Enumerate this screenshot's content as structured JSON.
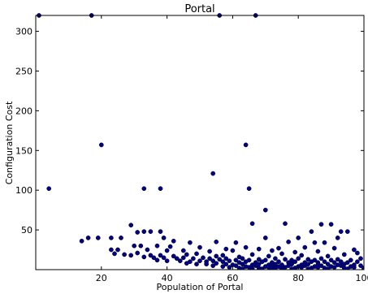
{
  "chart_data": {
    "type": "scatter",
    "title": "Portal",
    "xlabel": "Population of Portal",
    "ylabel": "Configuration Cost",
    "xlim": [
      0,
      100
    ],
    "ylim": [
      0,
      320
    ],
    "xticks": [
      20,
      40,
      60,
      80,
      100
    ],
    "yticks": [
      50,
      100,
      150,
      200,
      250,
      300
    ],
    "grid": false,
    "legend": "none",
    "marker_color": "#00008b",
    "series": [
      {
        "values": [
          [
            1,
            320
          ],
          [
            17,
            320
          ],
          [
            56,
            320
          ],
          [
            67,
            320
          ],
          [
            20,
            157
          ],
          [
            64,
            157
          ],
          [
            54,
            121
          ],
          [
            4,
            102
          ],
          [
            33,
            102
          ],
          [
            38,
            102
          ],
          [
            65,
            102
          ],
          [
            70,
            75
          ],
          [
            66,
            58
          ],
          [
            76,
            58
          ],
          [
            87,
            57
          ],
          [
            90,
            57
          ],
          [
            29,
            56
          ],
          [
            38,
            48
          ],
          [
            31,
            47
          ],
          [
            33,
            48
          ],
          [
            35,
            48
          ],
          [
            84,
            48
          ],
          [
            93,
            48
          ],
          [
            95,
            48
          ],
          [
            70,
            40
          ],
          [
            80,
            40
          ],
          [
            92,
            40
          ],
          [
            16,
            40
          ],
          [
            19,
            40
          ],
          [
            23,
            40
          ],
          [
            26,
            40
          ],
          [
            39,
            40
          ],
          [
            14,
            36
          ],
          [
            42,
            36
          ],
          [
            47,
            34
          ],
          [
            55,
            35
          ],
          [
            61,
            34
          ],
          [
            77,
            35
          ],
          [
            85,
            34
          ],
          [
            88,
            34
          ],
          [
            30,
            30
          ],
          [
            32,
            30
          ],
          [
            37,
            30
          ],
          [
            41,
            29
          ],
          [
            50,
            28
          ],
          [
            58,
            26
          ],
          [
            64,
            28
          ],
          [
            68,
            26
          ],
          [
            74,
            27
          ],
          [
            82,
            28
          ],
          [
            91,
            27
          ],
          [
            23,
            25
          ],
          [
            25,
            25
          ],
          [
            34,
            25
          ],
          [
            40,
            24
          ],
          [
            45,
            24
          ],
          [
            53,
            23
          ],
          [
            60,
            24
          ],
          [
            72,
            24
          ],
          [
            79,
            22
          ],
          [
            86,
            23
          ],
          [
            97,
            25
          ],
          [
            24,
            20
          ],
          [
            27,
            19
          ],
          [
            31,
            21
          ],
          [
            35,
            18
          ],
          [
            38,
            18
          ],
          [
            42,
            17
          ],
          [
            46,
            19
          ],
          [
            49,
            20
          ],
          [
            55,
            17
          ],
          [
            57,
            18
          ],
          [
            62,
            16
          ],
          [
            66,
            19
          ],
          [
            71,
            17
          ],
          [
            75,
            20
          ],
          [
            81,
            18
          ],
          [
            89,
            17
          ],
          [
            94,
            19
          ],
          [
            98,
            21
          ],
          [
            29,
            18
          ],
          [
            33,
            16
          ],
          [
            36,
            15
          ],
          [
            39,
            15
          ],
          [
            43,
            14
          ],
          [
            45,
            15
          ],
          [
            48,
            14
          ],
          [
            51,
            15
          ],
          [
            53,
            14
          ],
          [
            56,
            13
          ],
          [
            58,
            14
          ],
          [
            61,
            12
          ],
          [
            63,
            14
          ],
          [
            65,
            12
          ],
          [
            68,
            13
          ],
          [
            70,
            12
          ],
          [
            73,
            14
          ],
          [
            76,
            13
          ],
          [
            78,
            12
          ],
          [
            80,
            14
          ],
          [
            83,
            13
          ],
          [
            85,
            12
          ],
          [
            87,
            14
          ],
          [
            90,
            12
          ],
          [
            92,
            13
          ],
          [
            96,
            12
          ],
          [
            99,
            14
          ],
          [
            37,
            12
          ],
          [
            40,
            11
          ],
          [
            44,
            11
          ],
          [
            47,
            10
          ],
          [
            50,
            11
          ],
          [
            52,
            10
          ],
          [
            54,
            11
          ],
          [
            57,
            10
          ],
          [
            59,
            11
          ],
          [
            62,
            9
          ],
          [
            64,
            10
          ],
          [
            67,
            9
          ],
          [
            69,
            10
          ],
          [
            72,
            9
          ],
          [
            74,
            10
          ],
          [
            77,
            9
          ],
          [
            79,
            10
          ],
          [
            82,
            9
          ],
          [
            84,
            10
          ],
          [
            86,
            9
          ],
          [
            88,
            10
          ],
          [
            91,
            9
          ],
          [
            93,
            10
          ],
          [
            95,
            9
          ],
          [
            98,
            10
          ],
          [
            46,
            8
          ],
          [
            49,
            7
          ],
          [
            52,
            7
          ],
          [
            55,
            8
          ],
          [
            58,
            7
          ],
          [
            60,
            6
          ],
          [
            63,
            7
          ],
          [
            66,
            6
          ],
          [
            68,
            7
          ],
          [
            71,
            6
          ],
          [
            73,
            7
          ],
          [
            75,
            6
          ],
          [
            78,
            7
          ],
          [
            81,
            6
          ],
          [
            83,
            7
          ],
          [
            86,
            6
          ],
          [
            89,
            7
          ],
          [
            92,
            6
          ],
          [
            94,
            7
          ],
          [
            97,
            6
          ],
          [
            54,
            5
          ],
          [
            57,
            4
          ],
          [
            61,
            5
          ],
          [
            64,
            4
          ],
          [
            67,
            5
          ],
          [
            70,
            4
          ],
          [
            72,
            5
          ],
          [
            74,
            4
          ],
          [
            77,
            5
          ],
          [
            80,
            4
          ],
          [
            82,
            5
          ],
          [
            85,
            4
          ],
          [
            87,
            5
          ],
          [
            90,
            4
          ],
          [
            93,
            5
          ],
          [
            96,
            4
          ],
          [
            99,
            5
          ],
          [
            59,
            3
          ],
          [
            62,
            2
          ],
          [
            65,
            3
          ],
          [
            68,
            2
          ],
          [
            71,
            3
          ],
          [
            73,
            2
          ],
          [
            76,
            3
          ],
          [
            79,
            2
          ],
          [
            81,
            3
          ],
          [
            84,
            2
          ],
          [
            86,
            3
          ],
          [
            88,
            2
          ],
          [
            91,
            3
          ],
          [
            94,
            2
          ],
          [
            97,
            3
          ],
          [
            100,
            2
          ],
          [
            63,
            1
          ],
          [
            66,
            1
          ],
          [
            69,
            1
          ],
          [
            72,
            1
          ],
          [
            75,
            1
          ],
          [
            78,
            1
          ],
          [
            83,
            1
          ],
          [
            89,
            1
          ],
          [
            95,
            1
          ],
          [
            100,
            1
          ]
        ]
      }
    ]
  }
}
